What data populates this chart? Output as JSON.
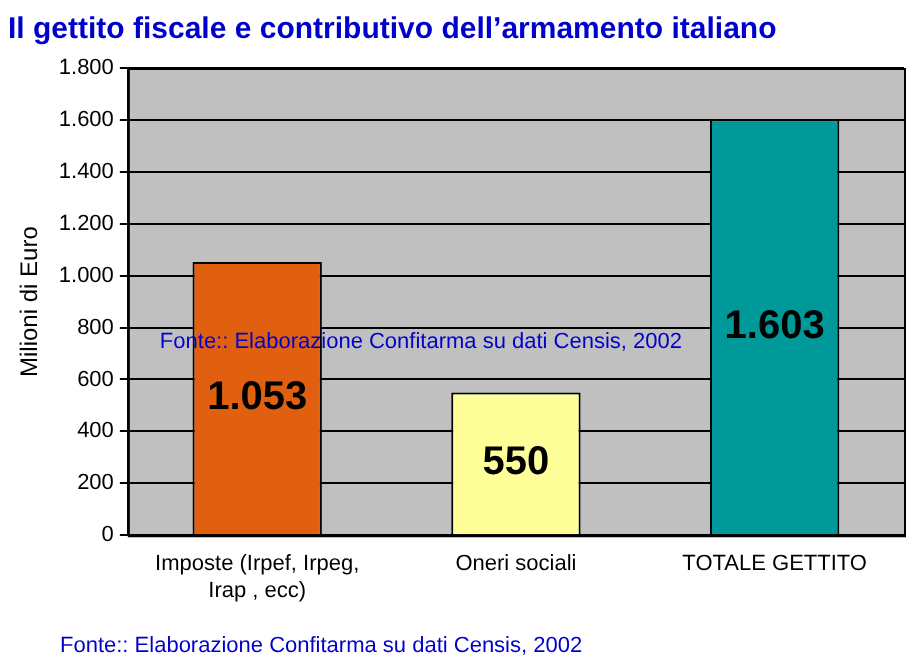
{
  "chart_data": {
    "type": "bar",
    "title": "Il gettito fiscale e contributivo dell’armamento italiano",
    "ylabel": "Milioni di Euro",
    "categories": [
      "Imposte (Irpef, Irpeg, Irap , ecc)",
      "Oneri sociali",
      "TOTALE GETTITO"
    ],
    "values": [
      1053,
      550,
      1603
    ],
    "colors": [
      "#e06010",
      "#ffff99",
      "#009999"
    ],
    "ylim": [
      0,
      1800
    ],
    "yticks": [
      {
        "value": 0,
        "label": "0"
      },
      {
        "value": 200,
        "label": "200"
      },
      {
        "value": 400,
        "label": "400"
      },
      {
        "value": 600,
        "label": "600"
      },
      {
        "value": 800,
        "label": "800"
      },
      {
        "value": 1000,
        "label": "1.000"
      },
      {
        "value": 1200,
        "label": "1.200"
      },
      {
        "value": 1400,
        "label": "1.400"
      },
      {
        "value": 1600,
        "label": "1.600"
      },
      {
        "value": 1800,
        "label": "1.800"
      }
    ],
    "grid": "y",
    "value_labels": [
      "1.053",
      "550",
      "1.603"
    ],
    "annotations": [
      "Fonte:: Elaborazione Confitarma su dati Censis, 2002",
      "Fonte:: Elaborazione Confitarma su dati Censis, 2002"
    ]
  }
}
